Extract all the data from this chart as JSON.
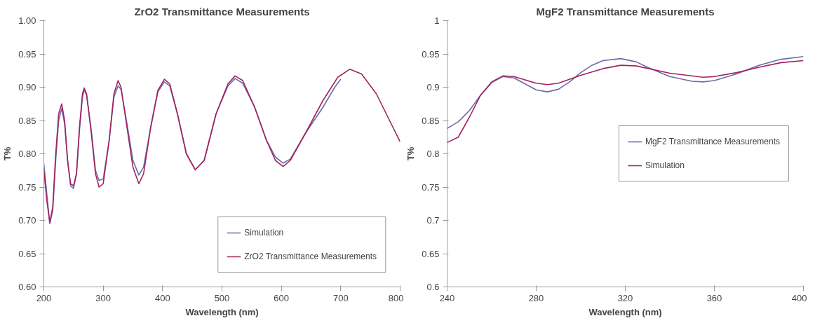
{
  "chart_data": [
    {
      "type": "line",
      "title": "ZrO2 Transmittance Measurements",
      "xlabel": "Wavelength (nm)",
      "ylabel": "T%",
      "xlim": [
        200,
        800
      ],
      "xticks": [
        200,
        300,
        400,
        500,
        600,
        700,
        800
      ],
      "ylim": [
        0.6,
        1.0
      ],
      "yticks": [
        {
          "value": 0.6,
          "label": "0.60"
        },
        {
          "value": 0.65,
          "label": "0.65"
        },
        {
          "value": 0.7,
          "label": "0.70"
        },
        {
          "value": 0.75,
          "label": "0.75"
        },
        {
          "value": 0.8,
          "label": "0.80"
        },
        {
          "value": 0.85,
          "label": "0.85"
        },
        {
          "value": 0.9,
          "label": "0.90"
        },
        {
          "value": 0.95,
          "label": "0.95"
        },
        {
          "value": 1.0,
          "label": "1.00"
        }
      ],
      "grid": false,
      "legend": "bottom right",
      "line_style": "solid",
      "marker": "none",
      "series": [
        {
          "name": "Simulation",
          "color": "#6b6ba8",
          "x": [
            200,
            205,
            210,
            215,
            220,
            225,
            230,
            235,
            240,
            245,
            250,
            255,
            260,
            265,
            268,
            272,
            280,
            287,
            293,
            300,
            310,
            318,
            325,
            330,
            340,
            350,
            360,
            368,
            380,
            392,
            403,
            412,
            425,
            440,
            455,
            470,
            490,
            510,
            522,
            535,
            555,
            575,
            590,
            603,
            615,
            640,
            670,
            690,
            700
          ],
          "values": [
            0.785,
            0.74,
            0.695,
            0.715,
            0.79,
            0.85,
            0.868,
            0.845,
            0.79,
            0.752,
            0.748,
            0.77,
            0.835,
            0.885,
            0.896,
            0.888,
            0.835,
            0.775,
            0.76,
            0.762,
            0.82,
            0.885,
            0.902,
            0.897,
            0.845,
            0.79,
            0.768,
            0.78,
            0.84,
            0.893,
            0.908,
            0.902,
            0.86,
            0.8,
            0.776,
            0.79,
            0.86,
            0.902,
            0.913,
            0.906,
            0.87,
            0.82,
            0.795,
            0.786,
            0.792,
            0.83,
            0.87,
            0.9,
            0.912
          ]
        },
        {
          "name": "ZrO2 Transmittance Measurements",
          "color": "#a3235e",
          "x": [
            200,
            205,
            210,
            215,
            220,
            225,
            230,
            235,
            240,
            245,
            250,
            255,
            260,
            265,
            268,
            272,
            280,
            287,
            293,
            300,
            310,
            318,
            325,
            330,
            340,
            350,
            360,
            368,
            380,
            392,
            403,
            412,
            425,
            440,
            455,
            470,
            490,
            510,
            522,
            535,
            555,
            575,
            590,
            603,
            615,
            640,
            670,
            695,
            715,
            735,
            760,
            785,
            800
          ],
          "values": [
            0.775,
            0.73,
            0.697,
            0.72,
            0.8,
            0.86,
            0.875,
            0.85,
            0.79,
            0.755,
            0.752,
            0.77,
            0.84,
            0.89,
            0.899,
            0.89,
            0.83,
            0.77,
            0.75,
            0.755,
            0.82,
            0.89,
            0.91,
            0.9,
            0.84,
            0.78,
            0.755,
            0.77,
            0.84,
            0.895,
            0.912,
            0.905,
            0.86,
            0.8,
            0.776,
            0.79,
            0.86,
            0.905,
            0.917,
            0.91,
            0.87,
            0.82,
            0.79,
            0.781,
            0.79,
            0.83,
            0.88,
            0.915,
            0.927,
            0.92,
            0.89,
            0.845,
            0.818
          ]
        }
      ]
    },
    {
      "type": "line",
      "title": "MgF2 Transmittance Measurements",
      "xlabel": "Wavelength (nm)",
      "ylabel": "T%",
      "xlim": [
        240,
        400
      ],
      "xticks": [
        240,
        280,
        320,
        360,
        400
      ],
      "ylim": [
        0.6,
        1.0
      ],
      "yticks": [
        0.6,
        0.65,
        0.7,
        0.75,
        0.8,
        0.85,
        0.9,
        0.95,
        {
          "value": 1.0,
          "label": "1"
        }
      ],
      "grid": false,
      "legend": "right",
      "line_style": "solid",
      "marker": "none",
      "series": [
        {
          "name": "MgF2 Transmittance Measurements",
          "color": "#6b6ba8",
          "x": [
            240,
            245,
            250,
            255,
            260,
            265,
            270,
            275,
            280,
            285,
            290,
            295,
            300,
            305,
            310,
            318,
            325,
            330,
            340,
            350,
            355,
            360,
            370,
            380,
            390,
            400
          ],
          "values": [
            0.838,
            0.848,
            0.865,
            0.888,
            0.907,
            0.916,
            0.914,
            0.905,
            0.896,
            0.893,
            0.897,
            0.908,
            0.922,
            0.933,
            0.94,
            0.943,
            0.938,
            0.93,
            0.916,
            0.909,
            0.908,
            0.91,
            0.92,
            0.933,
            0.942,
            0.946
          ]
        },
        {
          "name": "Simulation",
          "color": "#a3235e",
          "x": [
            240,
            245,
            250,
            255,
            260,
            265,
            270,
            280,
            285,
            290,
            300,
            310,
            318,
            325,
            340,
            355,
            360,
            370,
            380,
            390,
            400
          ],
          "values": [
            0.817,
            0.825,
            0.855,
            0.888,
            0.908,
            0.917,
            0.916,
            0.906,
            0.904,
            0.906,
            0.918,
            0.928,
            0.933,
            0.932,
            0.921,
            0.915,
            0.916,
            0.922,
            0.93,
            0.937,
            0.94
          ]
        }
      ]
    }
  ]
}
